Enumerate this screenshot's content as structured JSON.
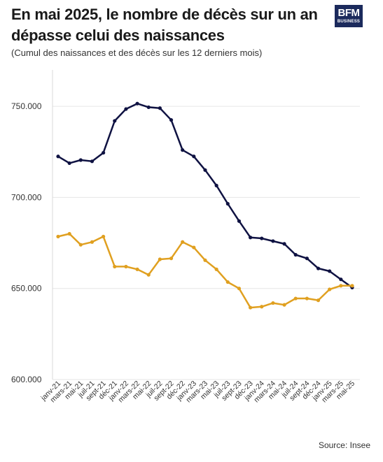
{
  "header": {
    "title": "En mai 2025, le nombre de décès sur un an dépasse celui des naissances",
    "subtitle": "(Cumul des naissances et des décès sur les 12 derniers mois)",
    "logo_line1": "BFM",
    "logo_line2": "BUSINESS"
  },
  "footer": {
    "source": "Source: Insee"
  },
  "chart_data": {
    "type": "line",
    "categories": [
      "janv-21",
      "mars-21",
      "mai-21",
      "juil-21",
      "sept-21",
      "déc-21",
      "janv-22",
      "mars-22",
      "mai-22",
      "juil-22",
      "sept-22",
      "déc-22",
      "janv-23",
      "mars-23",
      "mai-23",
      "juil-23",
      "sept-23",
      "déc-23",
      "janv-24",
      "mars-24",
      "mai-24",
      "juil-24",
      "sept-24",
      "déc-24",
      "janv-25",
      "mars-25",
      "mai-25"
    ],
    "y_ticks": [
      "750.000",
      "700.000",
      "650.000",
      "600.000"
    ],
    "ylim": [
      600000,
      770000
    ],
    "grid": true,
    "legend": "none",
    "colors": {
      "deces": "#0f1242",
      "naissances": "#e0a020",
      "grid": "#e6e6e6"
    },
    "series": [
      {
        "values": [
          722500,
          718800,
          720500,
          719800,
          724500,
          742000,
          748500,
          751500,
          749500,
          749000,
          742500,
          726000,
          722500,
          715000,
          706500,
          696500,
          687000,
          678000,
          677500,
          676000,
          674500,
          668500,
          666500,
          661000,
          659500,
          655000,
          650500
        ]
      },
      {
        "values": [
          678500,
          680000,
          674000,
          675500,
          678500,
          662000,
          662000,
          660500,
          657500,
          666000,
          666500,
          675500,
          672500,
          665500,
          660500,
          653500,
          650000,
          639500,
          640000,
          642000,
          641000,
          644500,
          644500,
          643500,
          649500,
          651500,
          651500
        ]
      }
    ]
  }
}
